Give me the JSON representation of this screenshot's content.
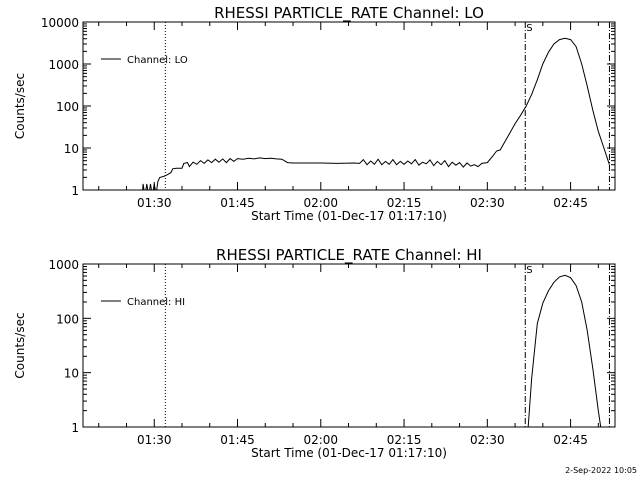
{
  "footer": {
    "date": "2-Sep-2022 10:05"
  },
  "chart_data": [
    {
      "type": "line",
      "title": "RHESSI PARTICLE_RATE Channel: LO",
      "xlabel": "Start Time (01-Dec-17 01:17:10)",
      "ylabel": "Counts/sec",
      "yscale": "log",
      "ylim": [
        1,
        10000
      ],
      "xlim": [
        "01:17:10",
        "02:53:00"
      ],
      "x_ticks": [
        "01:30",
        "01:45",
        "02:00",
        "02:15",
        "02:30",
        "02:45"
      ],
      "y_ticks": [
        "1",
        "10",
        "100",
        "1000",
        "10000"
      ],
      "markers": {
        "dotted": [
          "01:32:00"
        ],
        "dashdot": [
          "02:36:50",
          "02:52:00"
        ],
        "flag_label": "S"
      },
      "legend": {
        "position": "top-left",
        "entries": [
          "Channel: LO"
        ]
      },
      "series": [
        {
          "name": "Channel: LO",
          "points": [
            [
              "01:27:50",
              0.7
            ],
            [
              "01:28:00",
              1.4
            ],
            [
              "01:28:20",
              0.7
            ],
            [
              "01:28:40",
              1.4
            ],
            [
              "01:29:00",
              0.7
            ],
            [
              "01:29:20",
              1.4
            ],
            [
              "01:29:40",
              0.7
            ],
            [
              "01:30:00",
              1.4
            ],
            [
              "01:30:20",
              0.8
            ],
            [
              "01:30:40",
              1.6
            ],
            [
              "01:31:00",
              2.0
            ],
            [
              "01:31:40",
              2.1
            ],
            [
              "01:32:20",
              2.3
            ],
            [
              "01:33:00",
              2.6
            ],
            [
              "01:33:20",
              3.2
            ],
            [
              "01:34:00",
              3.3
            ],
            [
              "01:35:00",
              3.3
            ],
            [
              "01:35:20",
              4.3
            ],
            [
              "01:36:00",
              4.5
            ],
            [
              "01:36:20",
              3.6
            ],
            [
              "01:37:00",
              4.6
            ],
            [
              "01:37:40",
              4.1
            ],
            [
              "01:38:20",
              5.0
            ],
            [
              "01:39:00",
              4.3
            ],
            [
              "01:39:40",
              5.2
            ],
            [
              "01:40:20",
              4.5
            ],
            [
              "01:41:00",
              5.4
            ],
            [
              "01:41:40",
              4.6
            ],
            [
              "01:42:20",
              5.5
            ],
            [
              "01:43:00",
              4.5
            ],
            [
              "01:43:40",
              5.6
            ],
            [
              "01:44:20",
              4.8
            ],
            [
              "01:45:00",
              5.6
            ],
            [
              "01:46:00",
              5.4
            ],
            [
              "01:47:00",
              5.7
            ],
            [
              "01:48:00",
              5.5
            ],
            [
              "01:49:00",
              5.8
            ],
            [
              "01:50:00",
              5.6
            ],
            [
              "01:51:00",
              5.7
            ],
            [
              "01:52:00",
              5.5
            ],
            [
              "01:53:00",
              5.4
            ],
            [
              "01:54:00",
              4.5
            ],
            [
              "01:55:00",
              4.4
            ],
            [
              "01:57:00",
              4.4
            ],
            [
              "02:00:00",
              4.4
            ],
            [
              "02:03:00",
              4.3
            ],
            [
              "02:06:00",
              4.4
            ],
            [
              "02:07:00",
              4.3
            ],
            [
              "02:07:40",
              5.3
            ],
            [
              "02:08:20",
              4.0
            ],
            [
              "02:09:00",
              4.9
            ],
            [
              "02:09:40",
              4.1
            ],
            [
              "02:10:20",
              5.4
            ],
            [
              "02:11:00",
              4.0
            ],
            [
              "02:11:40",
              4.8
            ],
            [
              "02:12:20",
              4.1
            ],
            [
              "02:13:00",
              5.3
            ],
            [
              "02:13:40",
              4.0
            ],
            [
              "02:14:20",
              4.8
            ],
            [
              "02:15:00",
              4.1
            ],
            [
              "02:15:40",
              4.9
            ],
            [
              "02:16:20",
              4.2
            ],
            [
              "02:17:00",
              5.3
            ],
            [
              "02:17:40",
              3.9
            ],
            [
              "02:18:20",
              4.6
            ],
            [
              "02:19:00",
              4.2
            ],
            [
              "02:19:40",
              5.2
            ],
            [
              "02:20:20",
              3.8
            ],
            [
              "02:21:00",
              4.8
            ],
            [
              "02:21:40",
              4.0
            ],
            [
              "02:22:20",
              5.0
            ],
            [
              "02:23:00",
              3.6
            ],
            [
              "02:23:40",
              4.6
            ],
            [
              "02:24:20",
              3.9
            ],
            [
              "02:25:00",
              4.5
            ],
            [
              "02:25:40",
              3.5
            ],
            [
              "02:26:20",
              4.4
            ],
            [
              "02:27:00",
              3.7
            ],
            [
              "02:27:40",
              4.0
            ],
            [
              "02:28:20",
              3.6
            ],
            [
              "02:29:00",
              4.3
            ],
            [
              "02:30:00",
              4.5
            ],
            [
              "02:31:00",
              6.5
            ],
            [
              "02:31:40",
              8.5
            ],
            [
              "02:32:20",
              9.0
            ],
            [
              "02:33:00",
              13
            ],
            [
              "02:34:00",
              22
            ],
            [
              "02:35:00",
              38
            ],
            [
              "02:36:00",
              60
            ],
            [
              "02:37:00",
              100
            ],
            [
              "02:38:00",
              190
            ],
            [
              "02:39:00",
              420
            ],
            [
              "02:40:00",
              1000
            ],
            [
              "02:41:00",
              1900
            ],
            [
              "02:42:00",
              3000
            ],
            [
              "02:43:00",
              3800
            ],
            [
              "02:44:00",
              4100
            ],
            [
              "02:45:00",
              3800
            ],
            [
              "02:46:00",
              2600
            ],
            [
              "02:47:00",
              1000
            ],
            [
              "02:48:00",
              300
            ],
            [
              "02:49:00",
              80
            ],
            [
              "02:50:00",
              25
            ],
            [
              "02:51:00",
              10
            ],
            [
              "02:52:00",
              4
            ]
          ]
        }
      ]
    },
    {
      "type": "line",
      "title": "RHESSI PARTICLE_RATE Channel: HI",
      "xlabel": "Start Time (01-Dec-17 01:17:10)",
      "ylabel": "Counts/sec",
      "yscale": "log",
      "ylim": [
        1,
        1000
      ],
      "xlim": [
        "01:17:10",
        "02:53:00"
      ],
      "x_ticks": [
        "01:30",
        "01:45",
        "02:00",
        "02:15",
        "02:30",
        "02:45"
      ],
      "y_ticks": [
        "1",
        "10",
        "100",
        "1000"
      ],
      "markers": {
        "dotted": [
          "01:32:00"
        ],
        "dashdot": [
          "02:36:50",
          "02:52:00"
        ],
        "flag_label": "S"
      },
      "legend": {
        "position": "top-left",
        "entries": [
          "Channel: HI"
        ]
      },
      "series": [
        {
          "name": "Channel: HI",
          "points": [
            [
              "02:37:20",
              0.9
            ],
            [
              "02:38:00",
              8
            ],
            [
              "02:39:00",
              80
            ],
            [
              "02:40:00",
              190
            ],
            [
              "02:41:00",
              320
            ],
            [
              "02:42:00",
              460
            ],
            [
              "02:43:00",
              580
            ],
            [
              "02:44:00",
              620
            ],
            [
              "02:45:00",
              560
            ],
            [
              "02:46:00",
              400
            ],
            [
              "02:47:00",
              200
            ],
            [
              "02:48:00",
              60
            ],
            [
              "02:49:00",
              12
            ],
            [
              "02:50:00",
              2
            ],
            [
              "02:50:30",
              0.9
            ]
          ]
        }
      ]
    }
  ]
}
